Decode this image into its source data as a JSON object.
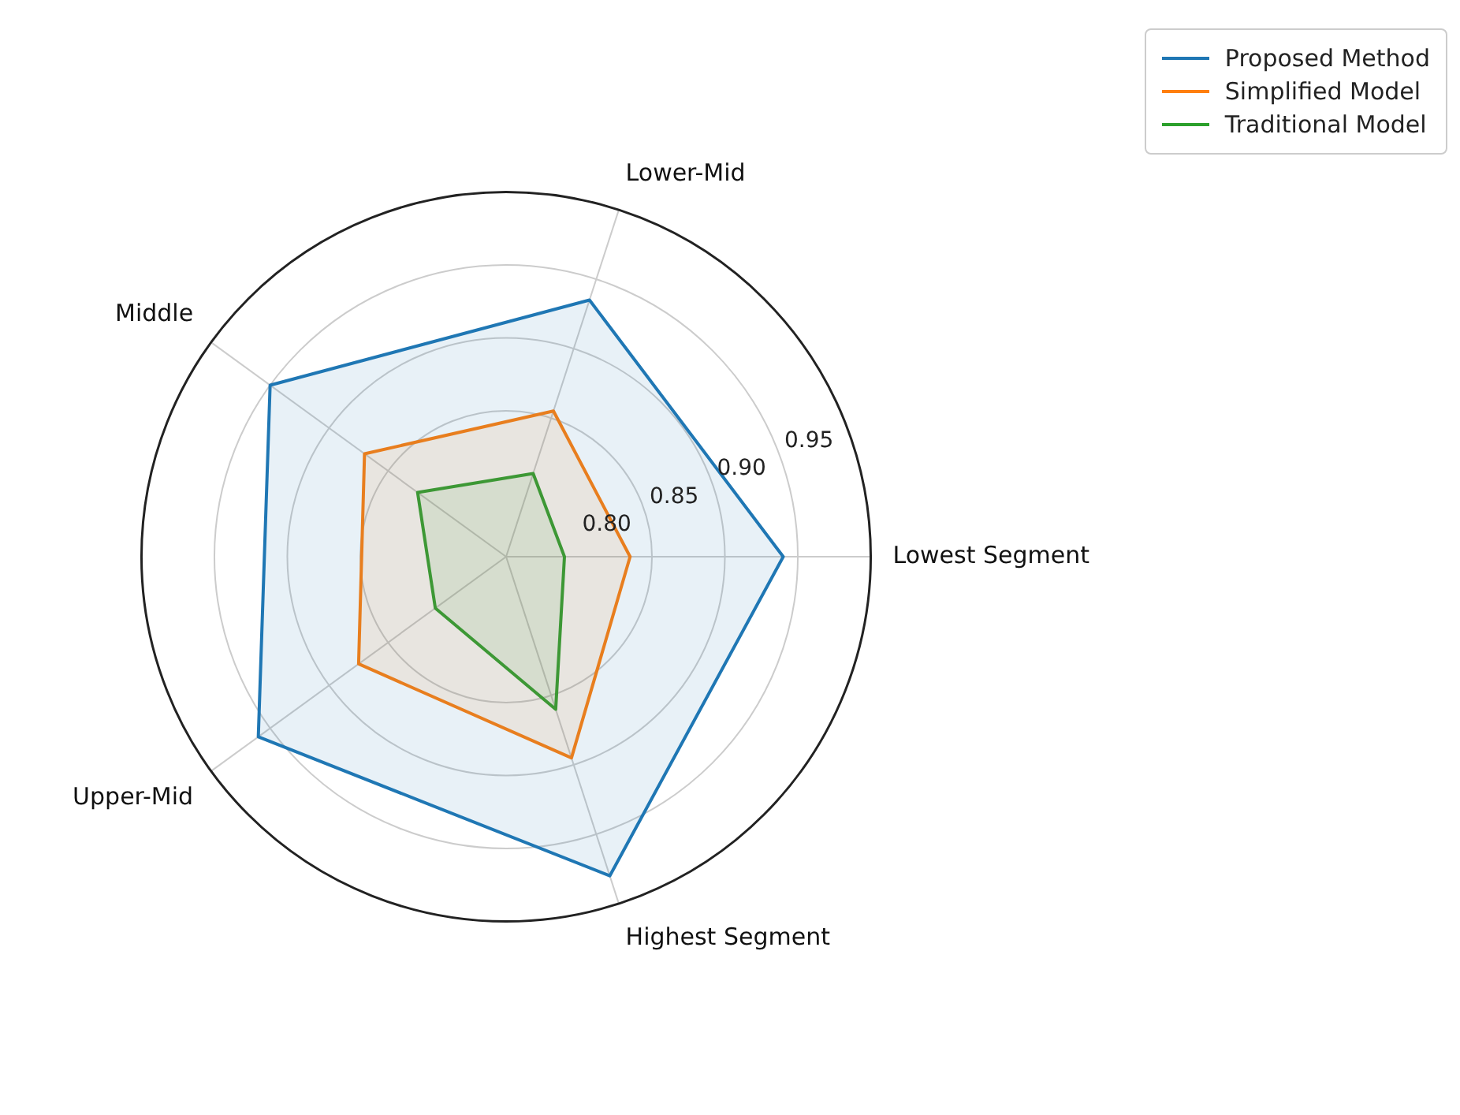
{
  "chart_data": {
    "type": "radar",
    "categories": [
      "Lower-Mid",
      "Lowest Segment",
      "Highest Segment",
      "Upper-Mid",
      "Middle"
    ],
    "series": [
      {
        "name": "Proposed Method",
        "color": "#1f77b4",
        "values": [
          0.935,
          0.94,
          0.98,
          0.96,
          0.95
        ]
      },
      {
        "name": "Simplified Model",
        "color": "#ff7f0e",
        "values": [
          0.855,
          0.835,
          0.895,
          0.875,
          0.87
        ]
      },
      {
        "name": "Traditional Model",
        "color": "#2ca02c",
        "values": [
          0.81,
          0.79,
          0.86,
          0.81,
          0.825
        ]
      }
    ],
    "ylim": [
      0.75,
      1.0
    ],
    "yticks": [
      {
        "value": 0.8,
        "label": "0.80"
      },
      {
        "value": 0.85,
        "label": "0.85"
      },
      {
        "value": 0.9,
        "label": "0.90"
      },
      {
        "value": 0.95,
        "label": "0.95"
      }
    ],
    "grid": true,
    "legend": "top right",
    "marker": "none",
    "line_style": "solid"
  }
}
